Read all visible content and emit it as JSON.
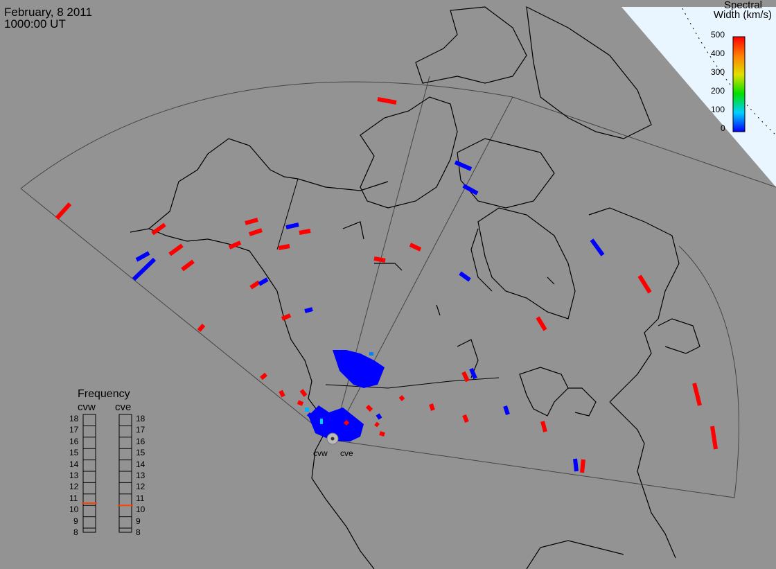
{
  "header": {
    "date": "February, 8 2011",
    "time": "1000:00 UT"
  },
  "legend": {
    "title_line1": "Spectral",
    "title_line2": "Width (km/s)",
    "ticks": [
      "500",
      "400",
      "300",
      "200",
      "100",
      "0"
    ],
    "colors": [
      "#0000ff",
      "#00d0ff",
      "#00e000",
      "#e0e000",
      "#ff8000",
      "#ff0000"
    ]
  },
  "frequency": {
    "title": "Frequency",
    "radars": [
      "cvw",
      "cve"
    ],
    "levels": [
      "18",
      "17",
      "16",
      "15",
      "14",
      "13",
      "12",
      "11",
      "10",
      "9",
      "8"
    ],
    "cvw_value": 10.7,
    "cve_value": 10.5,
    "marker_color": "#ff4000"
  },
  "radar_labels": [
    "cvw",
    "cve"
  ],
  "colors": {
    "background": "#939393",
    "land": "#939393",
    "outline": "#000000",
    "red": "#ff0000",
    "blue": "#0000ff",
    "ocean_corner": "#eaf6ff"
  }
}
